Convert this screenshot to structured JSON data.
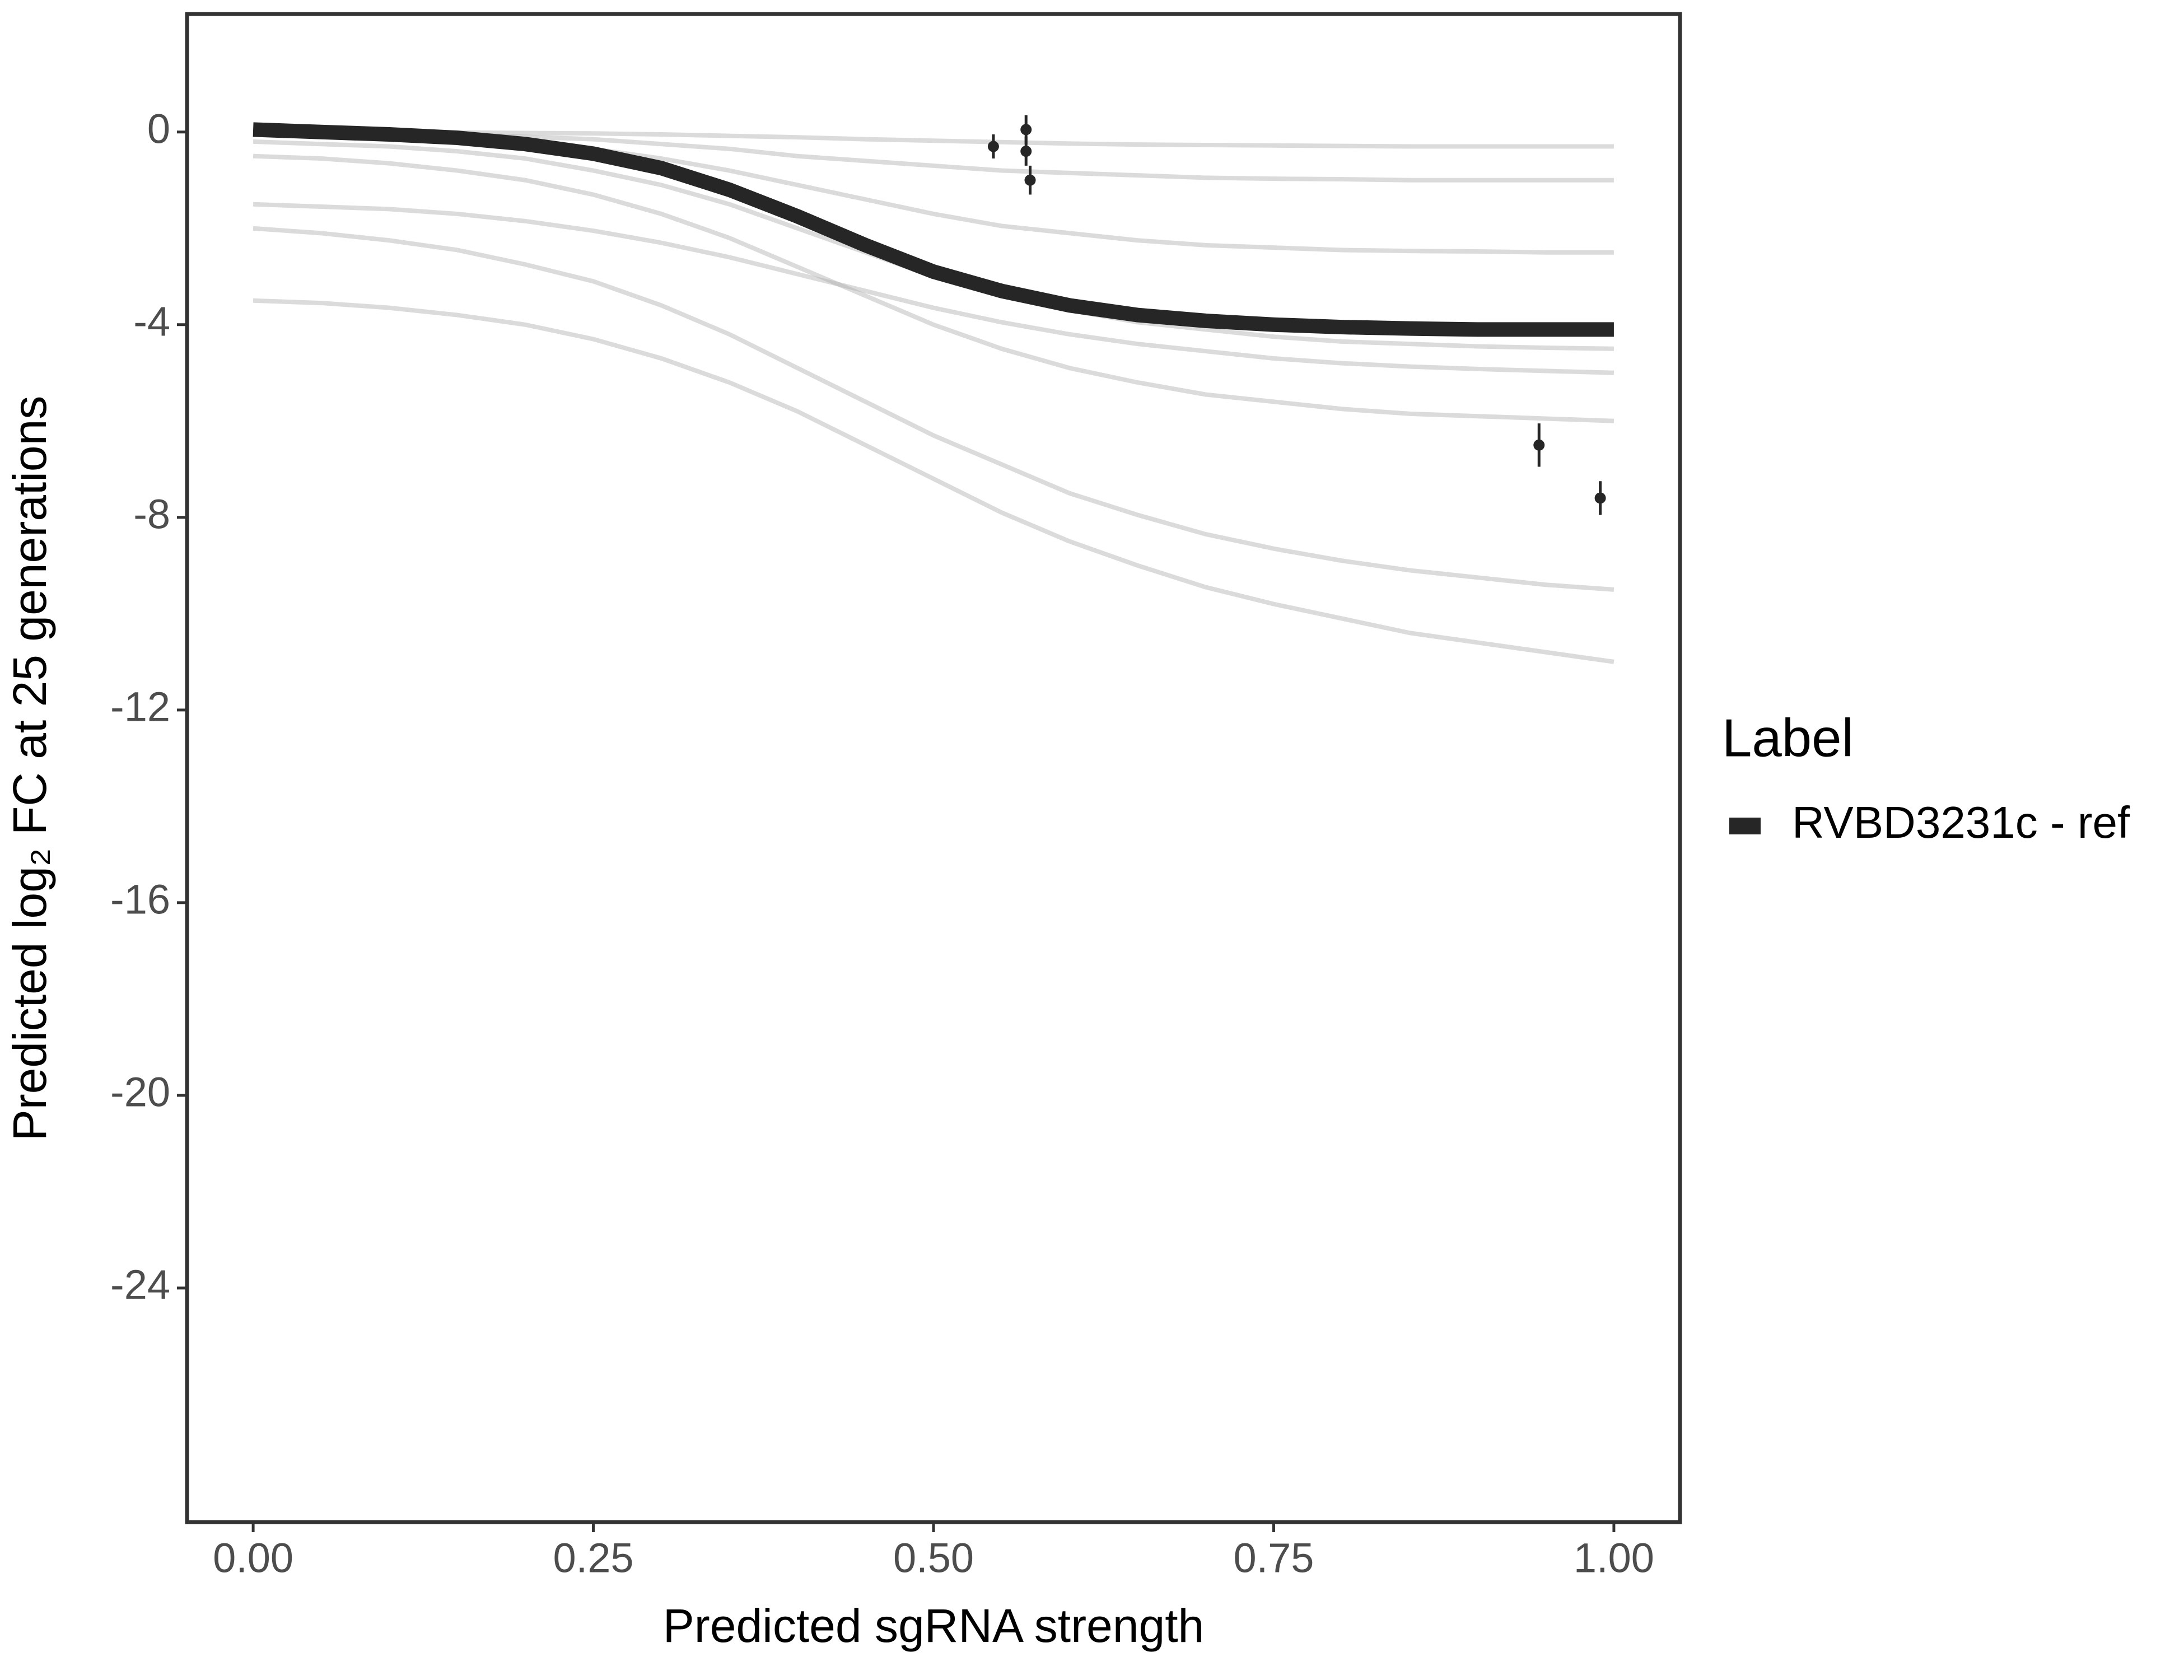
{
  "chart_data": {
    "type": "line",
    "x_label": "Predicted sgRNA strength",
    "y_label": "Predicted  log₂ FC at 25 generations",
    "x": [
      0,
      0.05,
      0.1,
      0.15,
      0.2,
      0.25,
      0.3,
      0.35,
      0.4,
      0.45,
      0.5,
      0.55,
      0.6,
      0.65,
      0.7,
      0.75,
      0.8,
      0.85,
      0.9,
      0.95,
      1
    ],
    "series": [
      {
        "name": "RVBD3231c - ref",
        "color": "#262626",
        "values": [
          0.05,
          0,
          -0.05,
          -0.12,
          -0.25,
          -0.45,
          -0.75,
          -1.2,
          -1.75,
          -2.35,
          -2.9,
          -3.3,
          -3.6,
          -3.8,
          -3.92,
          -4.0,
          -4.05,
          -4.08,
          -4.1,
          -4.1,
          -4.1
        ]
      }
    ],
    "draws": {
      "color": "#b0b0b0",
      "values": [
        [
          0,
          -0.01,
          -0.02,
          -0.05,
          -0.1,
          -0.15,
          -0.25,
          -0.35,
          -0.5,
          -0.6,
          -0.7,
          -0.8,
          -0.85,
          -0.9,
          -0.95,
          -0.97,
          -0.98,
          -1,
          -1,
          -1,
          -1
        ],
        [
          0,
          -0.02,
          -0.05,
          -0.1,
          -0.2,
          -0.35,
          -0.55,
          -0.8,
          -1.1,
          -1.4,
          -1.7,
          -1.95,
          -2.1,
          -2.25,
          -2.35,
          -2.4,
          -2.45,
          -2.47,
          -2.48,
          -2.5,
          -2.5
        ],
        [
          -0.5,
          -0.55,
          -0.65,
          -0.8,
          -1,
          -1.3,
          -1.7,
          -2.2,
          -2.8,
          -3.4,
          -4,
          -4.5,
          -4.9,
          -5.2,
          -5.45,
          -5.6,
          -5.75,
          -5.85,
          -5.9,
          -5.95,
          -6
        ],
        [
          -2,
          -2.1,
          -2.25,
          -2.45,
          -2.75,
          -3.1,
          -3.6,
          -4.2,
          -4.9,
          -5.6,
          -6.3,
          -6.9,
          -7.5,
          -7.95,
          -8.35,
          -8.65,
          -8.9,
          -9.1,
          -9.25,
          -9.4,
          -9.5
        ],
        [
          -3.5,
          -3.55,
          -3.65,
          -3.8,
          -4,
          -4.3,
          -4.7,
          -5.2,
          -5.8,
          -6.5,
          -7.2,
          -7.9,
          -8.5,
          -9,
          -9.45,
          -9.8,
          -10.1,
          -10.4,
          -10.6,
          -10.8,
          -11
        ],
        [
          0,
          0,
          0,
          -0.01,
          -0.02,
          -0.03,
          -0.05,
          -0.08,
          -0.11,
          -0.15,
          -0.18,
          -0.21,
          -0.24,
          -0.26,
          -0.27,
          -0.28,
          -0.29,
          -0.3,
          -0.3,
          -0.3,
          -0.3
        ],
        [
          -1.5,
          -1.55,
          -1.6,
          -1.7,
          -1.85,
          -2.05,
          -2.3,
          -2.6,
          -2.95,
          -3.3,
          -3.65,
          -3.95,
          -4.2,
          -4.4,
          -4.55,
          -4.7,
          -4.8,
          -4.87,
          -4.92,
          -4.96,
          -5
        ],
        [
          -0.2,
          -0.25,
          -0.3,
          -0.4,
          -0.55,
          -0.8,
          -1.1,
          -1.5,
          -2,
          -2.5,
          -3,
          -3.4,
          -3.7,
          -3.95,
          -4.1,
          -4.25,
          -4.35,
          -4.4,
          -4.45,
          -4.48,
          -4.5
        ]
      ]
    },
    "points": {
      "color": "#262626",
      "x": [
        0.544,
        0.568,
        0.568,
        0.571,
        0.945,
        0.99
      ],
      "values": [
        -0.3,
        0.05,
        -0.4,
        -1.0,
        -6.5,
        -7.6
      ],
      "errors": [
        0.25,
        0.3,
        0.3,
        0.3,
        0.45,
        0.35
      ]
    },
    "xlim": [
      -0.0486,
      1.0486
    ],
    "ylim": [
      -28.86,
      2.45
    ],
    "xticks": [
      {
        "value": 0,
        "label": "0.00"
      },
      0.25,
      {
        "value": 0.5,
        "label": "0.50"
      },
      0.75,
      {
        "value": 1,
        "label": "1.00"
      }
    ],
    "yticks": [
      0,
      -4,
      -8,
      -12,
      -16,
      -20,
      -24
    ],
    "legend_title": "Label",
    "legend": "right"
  }
}
